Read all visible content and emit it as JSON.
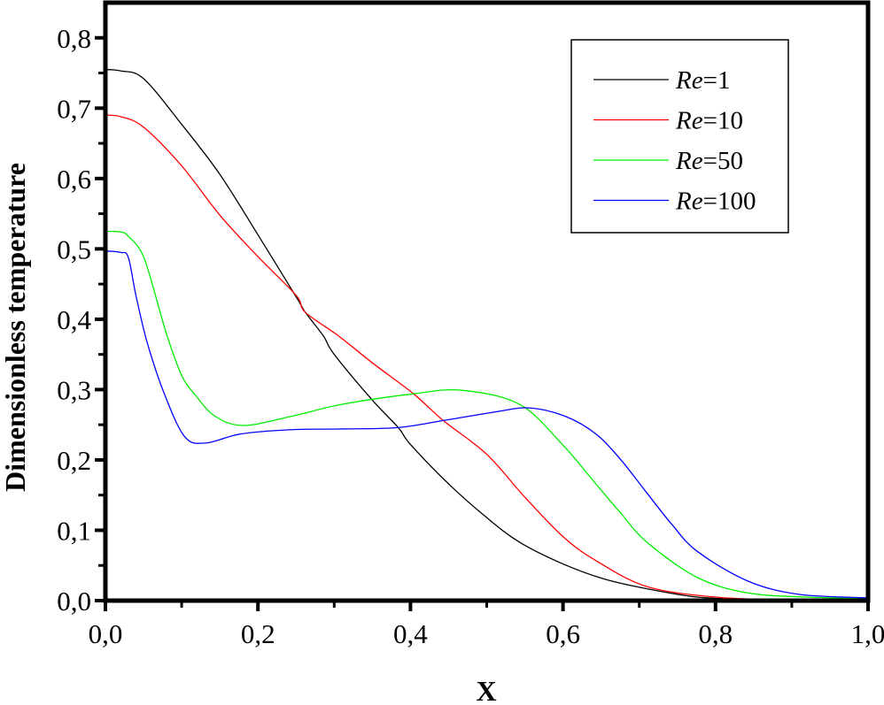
{
  "chart_data": {
    "type": "line",
    "title": "",
    "xlabel": "X",
    "ylabel": "Dimensionless temperature",
    "xlim": [
      0,
      1.0
    ],
    "ylim": [
      0,
      0.85
    ],
    "xticks": [
      0,
      0.2,
      0.4,
      0.6,
      0.8,
      1.0
    ],
    "xtick_labels": [
      "0,0",
      "0,2",
      "0,4",
      "0,6",
      "0,8",
      "1,0"
    ],
    "yticks": [
      0,
      0.1,
      0.2,
      0.3,
      0.4,
      0.5,
      0.6,
      0.7,
      0.8
    ],
    "ytick_labels": [
      "0,0",
      "0,1",
      "0,2",
      "0,3",
      "0,4",
      "0,5",
      "0,6",
      "0,7",
      "0,8"
    ],
    "grid": false,
    "legend_position": "top-right",
    "series": [
      {
        "name": "Re=1",
        "name_italic": "Re",
        "name_rest": "=1",
        "color": "#000000",
        "x": [
          0,
          0.02,
          0.05,
          0.1,
          0.15,
          0.2,
          0.25,
          0.262,
          0.286,
          0.3,
          0.35,
          0.384,
          0.4,
          0.45,
          0.5,
          0.543,
          0.596,
          0.65,
          0.7,
          0.776,
          0.85,
          0.9,
          1.0
        ],
        "y": [
          0.755,
          0.753,
          0.742,
          0.677,
          0.606,
          0.52,
          0.432,
          0.41,
          0.376,
          0.35,
          0.285,
          0.246,
          0.222,
          0.166,
          0.118,
          0.083,
          0.054,
          0.032,
          0.019,
          0.005,
          0.002,
          0.001,
          0.0005
        ]
      },
      {
        "name": "Re=10",
        "name_italic": "Re",
        "name_rest": "=10",
        "color": "#ff0000",
        "x": [
          0,
          0.02,
          0.05,
          0.1,
          0.15,
          0.2,
          0.25,
          0.262,
          0.306,
          0.35,
          0.404,
          0.443,
          0.5,
          0.55,
          0.6,
          0.643,
          0.71,
          0.8,
          0.9,
          1.0
        ],
        "y": [
          0.69,
          0.688,
          0.673,
          0.618,
          0.548,
          0.489,
          0.434,
          0.41,
          0.376,
          0.338,
          0.294,
          0.256,
          0.208,
          0.147,
          0.091,
          0.057,
          0.02,
          0.005,
          0.001,
          0.0005
        ]
      },
      {
        "name": "Re=50",
        "name_italic": "Re",
        "name_rest": "=50",
        "color": "#00ee00",
        "x": [
          0,
          0.02,
          0.03,
          0.05,
          0.071,
          0.081,
          0.1,
          0.118,
          0.144,
          0.181,
          0.244,
          0.31,
          0.404,
          0.467,
          0.543,
          0.6,
          0.643,
          0.676,
          0.71,
          0.776,
          0.842,
          0.92,
          1.0
        ],
        "y": [
          0.525,
          0.524,
          0.518,
          0.489,
          0.413,
          0.376,
          0.32,
          0.292,
          0.262,
          0.249,
          0.262,
          0.279,
          0.294,
          0.299,
          0.279,
          0.221,
          0.166,
          0.124,
          0.083,
          0.033,
          0.011,
          0.005,
          0.003
        ]
      },
      {
        "name": "Re=100",
        "name_italic": "Re",
        "name_rest": "=100",
        "color": "#0000ff",
        "x": [
          0,
          0.02,
          0.03,
          0.04,
          0.055,
          0.078,
          0.104,
          0.131,
          0.178,
          0.244,
          0.31,
          0.384,
          0.443,
          0.51,
          0.556,
          0.603,
          0.643,
          0.676,
          0.71,
          0.743,
          0.776,
          0.842,
          0.909,
          1.0
        ],
        "y": [
          0.497,
          0.495,
          0.488,
          0.434,
          0.366,
          0.292,
          0.233,
          0.224,
          0.237,
          0.243,
          0.244,
          0.246,
          0.256,
          0.268,
          0.274,
          0.262,
          0.237,
          0.2,
          0.153,
          0.108,
          0.07,
          0.028,
          0.009,
          0.004
        ]
      }
    ]
  }
}
